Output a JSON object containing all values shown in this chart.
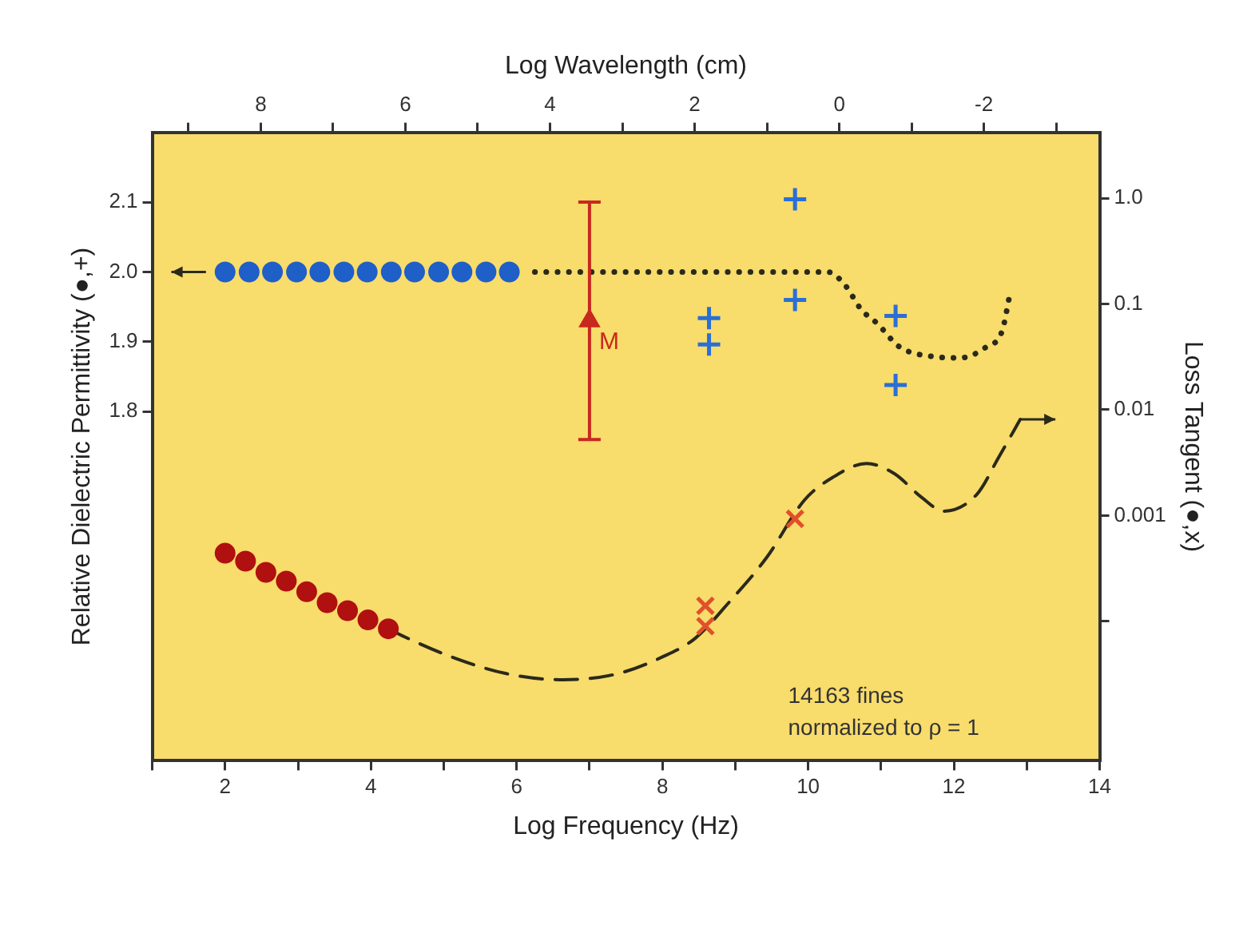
{
  "chart_data": {
    "type": "scatter",
    "xlabel": "Log Frequency (Hz)",
    "ylabel": "Relative Dielectric Permittivity (●,+)",
    "y2label": "Loss Tangent (●,x)",
    "x2label": "Log Wavelength (cm)",
    "xlim": [
      1,
      14
    ],
    "xticks": [
      {
        "value": 1,
        "label": null
      },
      2,
      {
        "value": 3,
        "label": null
      },
      4,
      {
        "value": 5,
        "label": null
      },
      6,
      {
        "value": 7,
        "label": null
      },
      8,
      {
        "value": 9,
        "label": null
      },
      10,
      {
        "value": 11,
        "label": null
      },
      12,
      {
        "value": 13,
        "label": null
      },
      14
    ],
    "x2lim": [
      9.5,
      -3.6
    ],
    "x2ticks": [
      {
        "value": 9,
        "label": null
      },
      8,
      {
        "value": 7,
        "label": null
      },
      6,
      {
        "value": 5,
        "label": null
      },
      4,
      {
        "value": 3,
        "label": null
      },
      2,
      {
        "value": 1,
        "label": null
      },
      0,
      {
        "value": -1,
        "label": null
      },
      -2,
      {
        "value": -3,
        "label": null
      }
    ],
    "ylim": [
      1.3,
      2.2
    ],
    "yticks": [
      1.8,
      1.9,
      {
        "value": 2,
        "label": "2.0"
      },
      2.1
    ],
    "y2lim": [
      4.8e-06,
      4.2
    ],
    "y2ticks": [
      {
        "value": 1,
        "label": "1.0"
      },
      0.1,
      0.01,
      0.001,
      {
        "value": 0.0001,
        "label": null
      }
    ],
    "log": "y2",
    "grid": false,
    "legend": false,
    "series": [
      {
        "type": "scatter",
        "marker": "circle",
        "color": "#1f5fc8",
        "axis": "y",
        "x": [
          2.0,
          2.33,
          2.65,
          2.98,
          3.3,
          3.63,
          3.95,
          4.28,
          4.6,
          4.93,
          5.25,
          5.58,
          5.9
        ],
        "values": [
          2,
          2,
          2,
          2,
          2,
          2,
          2,
          2,
          2,
          2,
          2,
          2,
          2
        ]
      },
      {
        "type": "scatter",
        "marker": "cross",
        "color": "#2a6fd6",
        "axis": "y",
        "x": [
          9.82,
          9.82,
          8.64,
          8.64,
          11.2,
          11.2
        ],
        "values": [
          2.104,
          1.96,
          1.934,
          1.896,
          1.937,
          1.838
        ]
      },
      {
        "type": "line",
        "marker": "none",
        "line_style": "dotted",
        "color": "#2a2a1a",
        "axis": "y",
        "x": [
          6.25,
          7.5,
          8.5,
          9.5,
          10.27,
          10.5,
          10.73,
          10.95,
          11.25,
          11.7,
          12.09,
          12.45,
          12.66,
          12.77
        ],
        "values": [
          2,
          2,
          2,
          2,
          2,
          1.982,
          1.946,
          1.926,
          1.893,
          1.879,
          1.877,
          1.893,
          1.915,
          1.969
        ]
      },
      {
        "type": "scatter",
        "name": "M",
        "marker": "triangle",
        "color": "#c8281e",
        "axis": "y",
        "x": [
          7.0
        ],
        "values": [
          1.93
        ],
        "errors": [
          [
            1.76,
            2.1
          ]
        ]
      },
      {
        "type": "scatter",
        "marker": "circle",
        "color": "#b01010",
        "axis": "y2",
        "x": [
          2.0,
          2.28,
          2.56,
          2.84,
          3.12,
          3.4,
          3.68,
          3.96,
          4.24
        ],
        "values": [
          0.00044,
          0.00037,
          0.00029,
          0.00024,
          0.00019,
          0.00015,
          0.000126,
          0.000103,
          8.5e-05
        ]
      },
      {
        "type": "scatter",
        "marker": "x",
        "color": "#e0502a",
        "axis": "y2",
        "x": [
          8.59,
          8.59,
          9.82
        ],
        "values": [
          0.00014,
          9e-05,
          0.00093
        ]
      },
      {
        "type": "line",
        "marker": "none",
        "line_style": "dashed",
        "color": "#2a2a1a",
        "axis": "y2",
        "x": [
          4.24,
          4.43,
          5.11,
          5.86,
          6.64,
          7.39,
          8.0,
          8.45,
          8.91,
          9.43,
          9.95,
          10.34,
          10.8,
          11.18,
          11.55,
          11.86,
          12.32,
          12.61,
          12.91
        ],
        "values": [
          8.5e-05,
          7.3e-05,
          4.6e-05,
          3.2e-05,
          2.8e-05,
          3.2e-05,
          4.6e-05,
          6.9e-05,
          0.00015,
          0.0004,
          0.0014,
          0.0023,
          0.0031,
          0.0025,
          0.0015,
          0.0011,
          0.0016,
          0.0035,
          0.0081
        ]
      }
    ],
    "annotations": [
      "14163 fines\nnormalized to ρ = 1"
    ]
  }
}
